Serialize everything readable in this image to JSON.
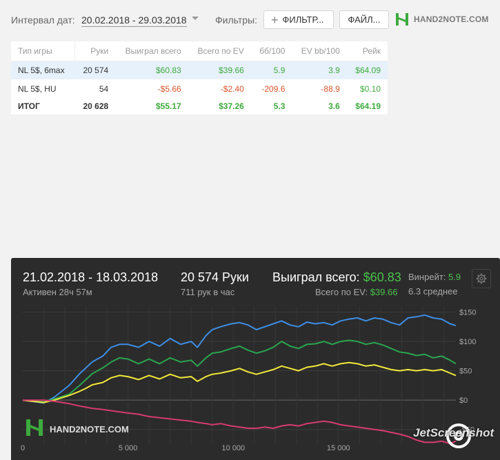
{
  "toolbar": {
    "date_label": "Интервал дат:",
    "date_range": "20.02.2018 - 29.03.2018",
    "filters_label": "Фильтры:",
    "filter_button": "ФИЛЬТР...",
    "file_button": "ФАЙЛ...",
    "logo_text": "HAND2NOTE.COM"
  },
  "table": {
    "headers": [
      "Тип игры",
      "Руки",
      "Выиграл всего",
      "Всего по EV",
      "бб/100",
      "EV bb/100",
      "Рейк"
    ],
    "rows": [
      [
        "NL 5$, 6max",
        "20 574",
        "$60.83",
        "$39.66",
        "5.9",
        "3.9",
        "$64.09"
      ],
      [
        "NL 5$, HU",
        "54",
        "-$5.66",
        "-$2.40",
        "-209.6",
        "-88.9",
        "$0.10"
      ]
    ],
    "total": [
      "ИТОГ",
      "20 628",
      "$55.17",
      "$37.26",
      "5.3",
      "3.6",
      "$64.19"
    ]
  },
  "panel": {
    "date_range": "21.02.2018 - 18.03.2018",
    "active": "Активен 28ч 57м",
    "hands": "20 574 Руки",
    "hands_per_hour": "711 рук в час",
    "won_label": "Выиграл всего:",
    "won_value": "$60.83",
    "ev_label": "Всего по EV:",
    "ev_value": "$39.66",
    "winrate_label": "Винрейт:",
    "winrate_value": "5.9",
    "average": "6.3 среднее",
    "chart_logo": "HAND2NOTE.COM"
  },
  "watermark": "JetScreenshot",
  "colors": {
    "blue": "#3d8ee6",
    "green": "#2aa64e",
    "yellow": "#f2e93a",
    "pink": "#d83a72",
    "positive": "#3daa3d",
    "negative": "#d9552b"
  },
  "chart_data": {
    "type": "line",
    "xlim": [
      0,
      20574
    ],
    "ylim": [
      -75,
      160
    ],
    "x_ticks": [
      0,
      5000,
      10000,
      15000,
      20000
    ],
    "x_tick_labels": [
      "0",
      "5 000",
      "10 000",
      "15 000",
      ""
    ],
    "y_ticks": [
      150,
      100,
      50,
      0,
      -50
    ],
    "y_tick_labels": [
      "$150",
      "$100",
      "$50",
      "$0",
      "-$50"
    ],
    "grid": true,
    "series": [
      {
        "color": "#3d8ee6",
        "x": [
          0,
          1000,
          1500,
          2200,
          2700,
          3000,
          3300,
          3800,
          4200,
          4600,
          5000,
          5500,
          6000,
          6500,
          7000,
          7500,
          8000,
          8300,
          8700,
          9000,
          9400,
          9900,
          10300,
          10700,
          11100,
          11500,
          11900,
          12300,
          12700,
          13100,
          13500,
          13900,
          14300,
          14700,
          15100,
          15500,
          15900,
          16300,
          16700,
          17100,
          17500,
          17900,
          18300,
          18700,
          19100,
          19500,
          19900,
          20300,
          20574
        ],
        "y": [
          0,
          -5,
          5,
          25,
          45,
          55,
          65,
          75,
          90,
          95,
          95,
          90,
          100,
          92,
          105,
          95,
          100,
          90,
          110,
          120,
          125,
          130,
          132,
          128,
          120,
          125,
          130,
          135,
          128,
          125,
          133,
          130,
          132,
          128,
          135,
          138,
          140,
          135,
          140,
          138,
          132,
          128,
          140,
          142,
          145,
          140,
          138,
          130,
          127
        ]
      },
      {
        "color": "#2aa64e",
        "x": [
          0,
          1000,
          1500,
          2200,
          2700,
          3000,
          3300,
          3800,
          4200,
          4600,
          5000,
          5500,
          6000,
          6500,
          7000,
          7500,
          8000,
          8300,
          8700,
          9000,
          9400,
          9900,
          10300,
          10700,
          11100,
          11500,
          11900,
          12300,
          12700,
          13100,
          13500,
          13900,
          14300,
          14700,
          15100,
          15500,
          15900,
          16300,
          16700,
          17100,
          17500,
          17900,
          18300,
          18700,
          19100,
          19500,
          19900,
          20300,
          20574
        ],
        "y": [
          0,
          -3,
          2,
          10,
          25,
          35,
          45,
          55,
          65,
          72,
          70,
          62,
          70,
          62,
          72,
          65,
          68,
          58,
          72,
          80,
          82,
          88,
          92,
          85,
          80,
          84,
          90,
          100,
          92,
          88,
          95,
          96,
          100,
          95,
          100,
          102,
          100,
          95,
          98,
          94,
          88,
          82,
          80,
          76,
          78,
          72,
          75,
          68,
          62
        ]
      },
      {
        "color": "#f2e93a",
        "x": [
          0,
          1000,
          1500,
          2200,
          2700,
          3000,
          3300,
          3800,
          4200,
          4600,
          5000,
          5500,
          6000,
          6500,
          7000,
          7500,
          8000,
          8300,
          8700,
          9000,
          9400,
          9900,
          10300,
          10700,
          11100,
          11500,
          11900,
          12300,
          12700,
          13100,
          13500,
          13900,
          14300,
          14700,
          15100,
          15500,
          15900,
          16300,
          16700,
          17100,
          17500,
          17900,
          18300,
          18700,
          19100,
          19500,
          19900,
          20300,
          20574
        ],
        "y": [
          0,
          -4,
          0,
          8,
          15,
          20,
          26,
          30,
          38,
          42,
          40,
          35,
          42,
          36,
          44,
          38,
          40,
          32,
          40,
          44,
          46,
          50,
          54,
          48,
          44,
          48,
          52,
          58,
          54,
          50,
          56,
          58,
          62,
          58,
          62,
          64,
          62,
          58,
          60,
          56,
          52,
          50,
          52,
          50,
          52,
          50,
          52,
          46,
          42
        ]
      },
      {
        "color": "#d83a72",
        "x": [
          0,
          1000,
          1500,
          2200,
          2700,
          3000,
          3300,
          3800,
          4200,
          4600,
          5000,
          5500,
          6000,
          6500,
          7000,
          7500,
          8000,
          8300,
          8700,
          9000,
          9400,
          9900,
          10300,
          10700,
          11100,
          11500,
          11900,
          12300,
          12700,
          13100,
          13500,
          13900,
          14300,
          14700,
          15100,
          15500,
          15900,
          16300,
          16700,
          17100,
          17500,
          17900,
          18300,
          18700,
          19100,
          19500,
          19900,
          20300,
          20574
        ],
        "y": [
          0,
          0,
          -2,
          -6,
          -10,
          -12,
          -14,
          -16,
          -18,
          -20,
          -22,
          -24,
          -28,
          -30,
          -32,
          -34,
          -36,
          -38,
          -40,
          -42,
          -40,
          -44,
          -46,
          -48,
          -48,
          -46,
          -48,
          -44,
          -42,
          -44,
          -40,
          -38,
          -36,
          -38,
          -42,
          -44,
          -46,
          -48,
          -50,
          -52,
          -55,
          -58,
          -62,
          -68,
          -72,
          -72,
          -70,
          -74,
          -70
        ]
      }
    ]
  }
}
